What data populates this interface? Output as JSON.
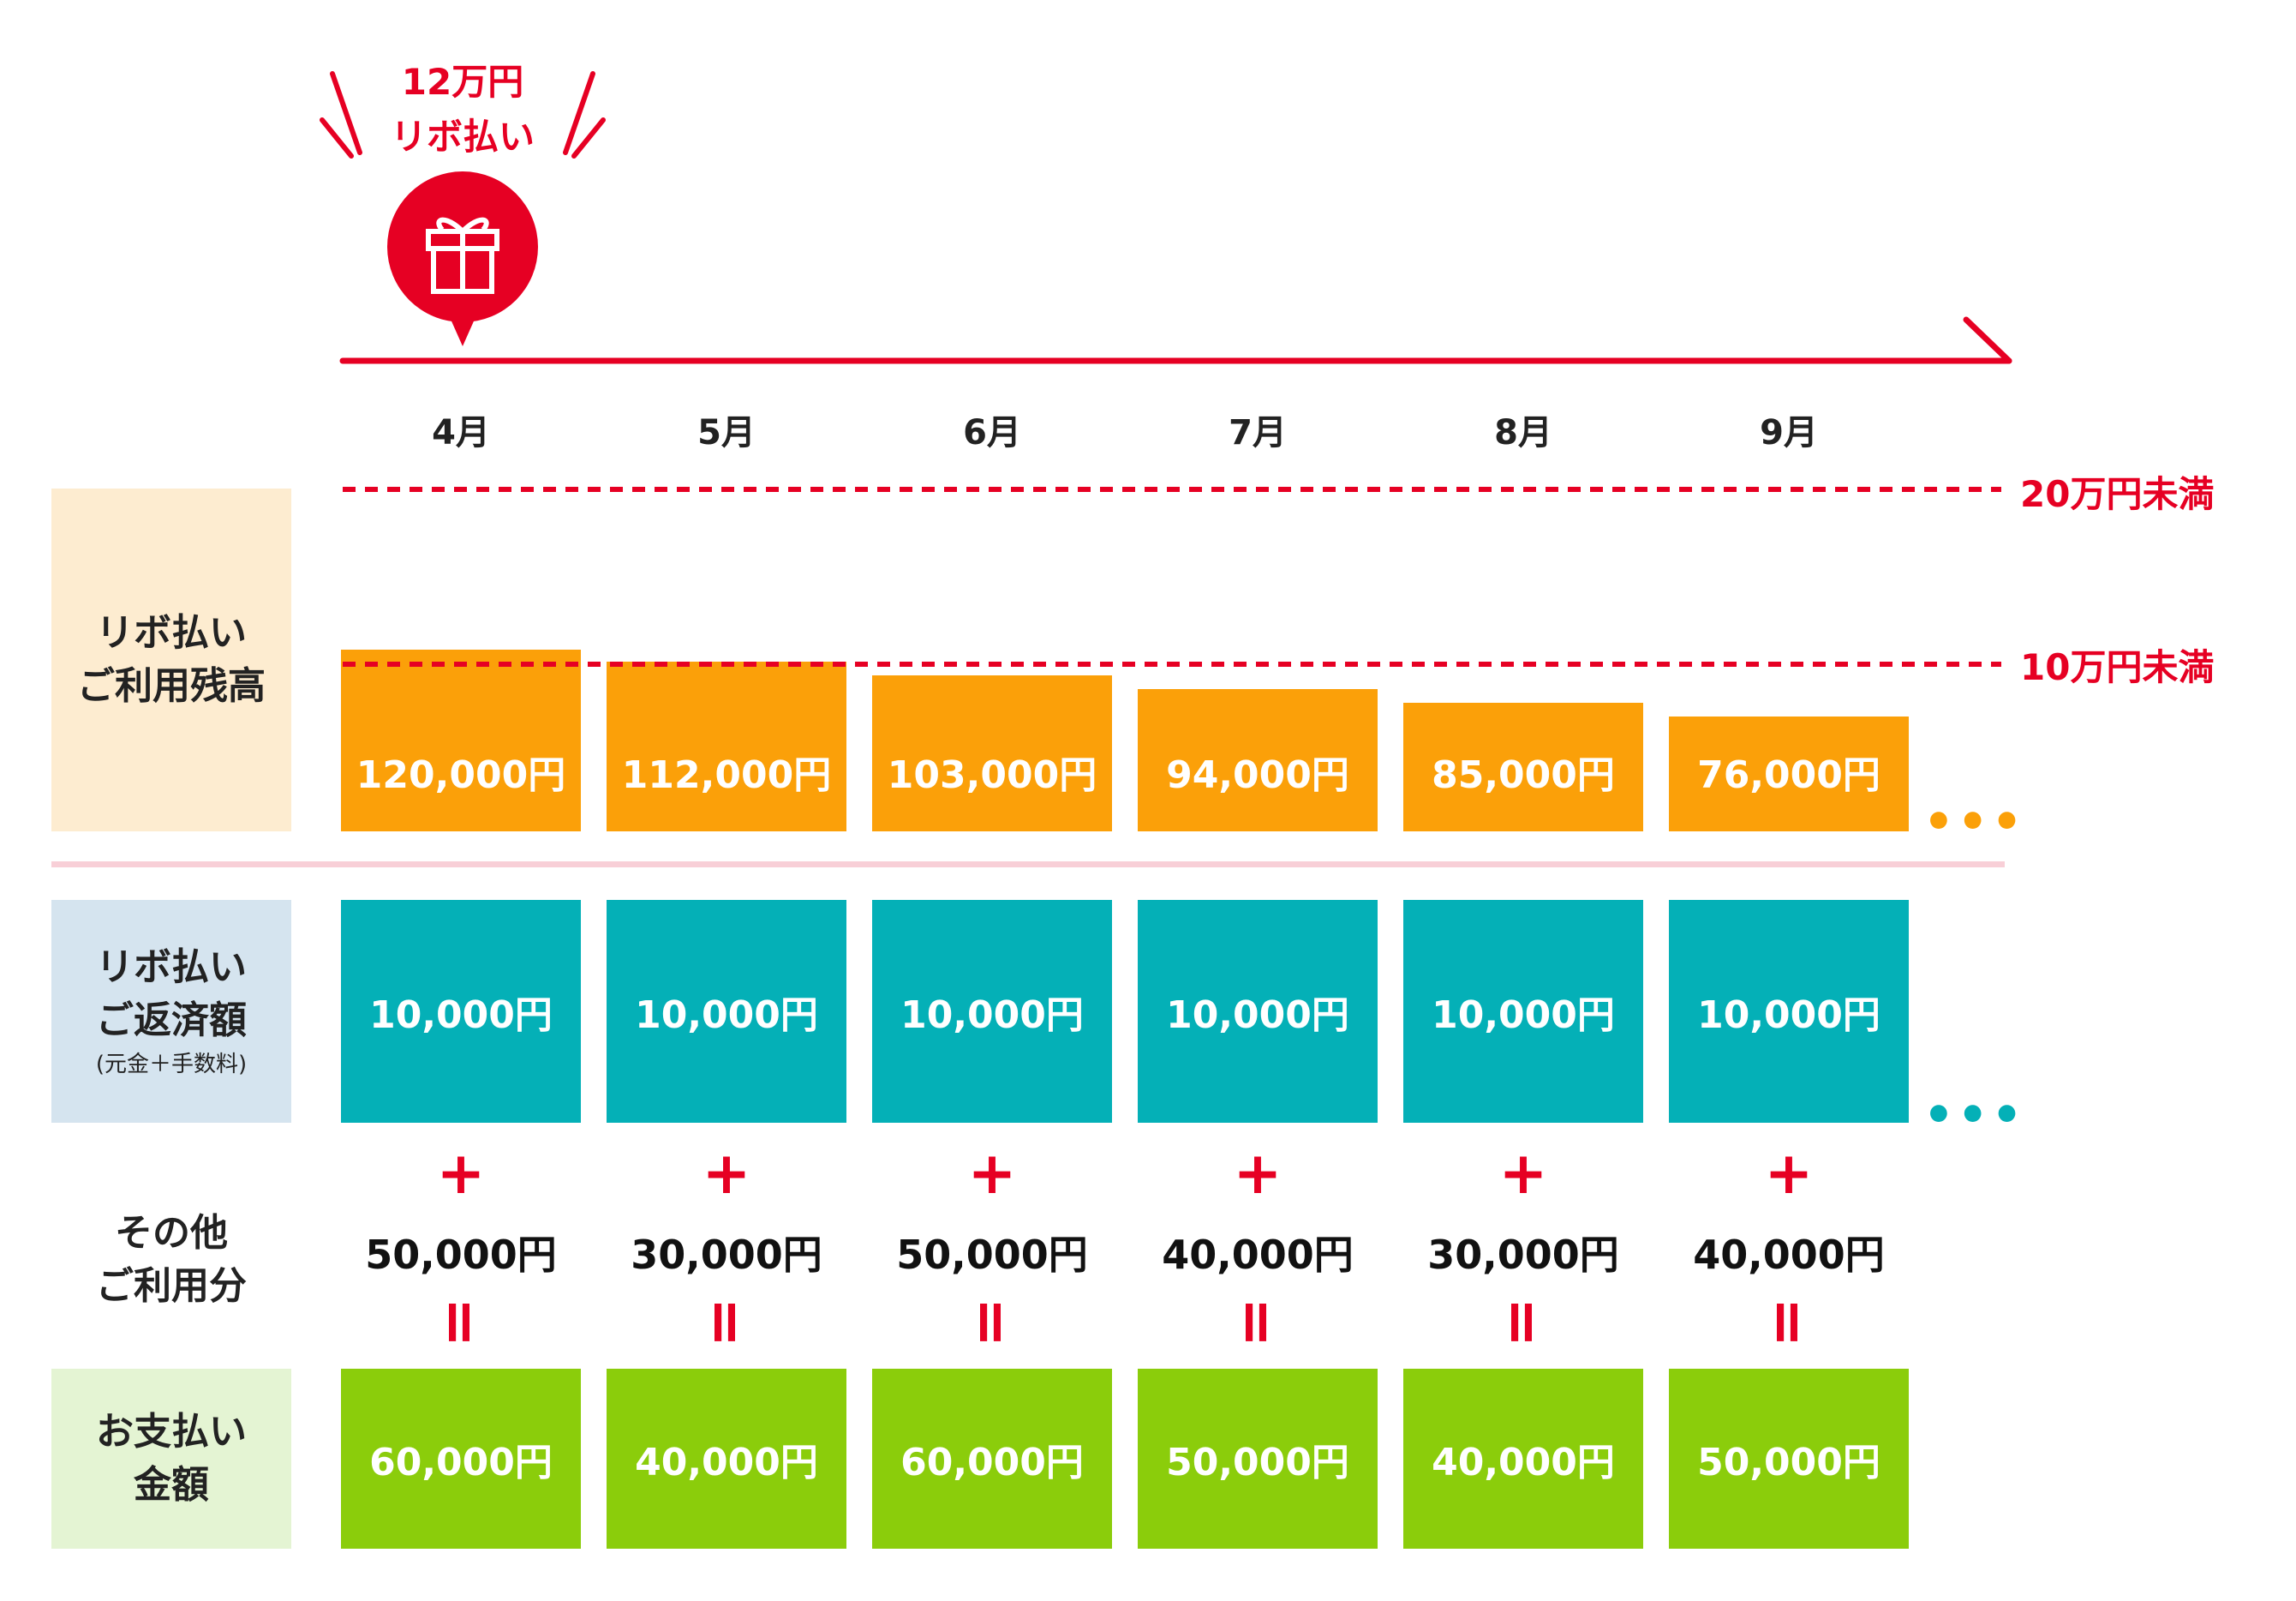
{
  "callout": {
    "line1": "12万円",
    "line2": "リボ払い",
    "icon": "gift-icon"
  },
  "months": [
    "4月",
    "5月",
    "6月",
    "7月",
    "8月",
    "9月"
  ],
  "thresholds": {
    "upper": "20万円未満",
    "lower": "10万円未満"
  },
  "categories": {
    "balance": {
      "line1": "リボ払い",
      "line2": "ご利用残高"
    },
    "repayment": {
      "line1": "リボ払い",
      "line2": "ご返済額",
      "note": "(元金＋手数料)"
    },
    "other": {
      "line1": "その他",
      "line2": "ご利用分"
    },
    "payment": {
      "line1": "お支払い",
      "line2": "金額"
    }
  },
  "signs": {
    "plus": "+",
    "equals": "="
  },
  "ellipsis": "•••",
  "colors": {
    "red": "#e60023",
    "orange": "#fba009",
    "teal": "#04b0b7",
    "green": "#8bcd0b",
    "pink_divider": "#f8cfd7",
    "balance_bg": "#fdecd0",
    "repayment_bg": "#d5e4ef",
    "payment_bg": "#e4f4d3"
  },
  "chart_data": {
    "type": "table",
    "categories": [
      "4月",
      "5月",
      "6月",
      "7月",
      "8月",
      "9月"
    ],
    "series": [
      {
        "name": "リボ払いご利用残高",
        "values": [
          120000,
          112000,
          103000,
          94000,
          85000,
          76000
        ],
        "labels": [
          "120,000円",
          "112,000円",
          "103,000円",
          "94,000円",
          "85,000円",
          "76,000円"
        ]
      },
      {
        "name": "リボ払いご返済額(元金＋手数料)",
        "values": [
          10000,
          10000,
          10000,
          10000,
          10000,
          10000
        ],
        "labels": [
          "10,000円",
          "10,000円",
          "10,000円",
          "10,000円",
          "10,000円",
          "10,000円"
        ]
      },
      {
        "name": "その他ご利用分",
        "values": [
          50000,
          30000,
          50000,
          40000,
          30000,
          40000
        ],
        "labels": [
          "50,000円",
          "30,000円",
          "50,000円",
          "40,000円",
          "30,000円",
          "40,000円"
        ]
      },
      {
        "name": "お支払い金額",
        "values": [
          60000,
          40000,
          60000,
          50000,
          40000,
          50000
        ],
        "labels": [
          "60,000円",
          "40,000円",
          "60,000円",
          "50,000円",
          "40,000円",
          "50,000円"
        ]
      }
    ],
    "thresholds": [
      {
        "label": "20万円未満",
        "value": 200000
      },
      {
        "label": "10万円未満",
        "value": 100000
      }
    ],
    "ylim": [
      0,
      200000
    ]
  }
}
